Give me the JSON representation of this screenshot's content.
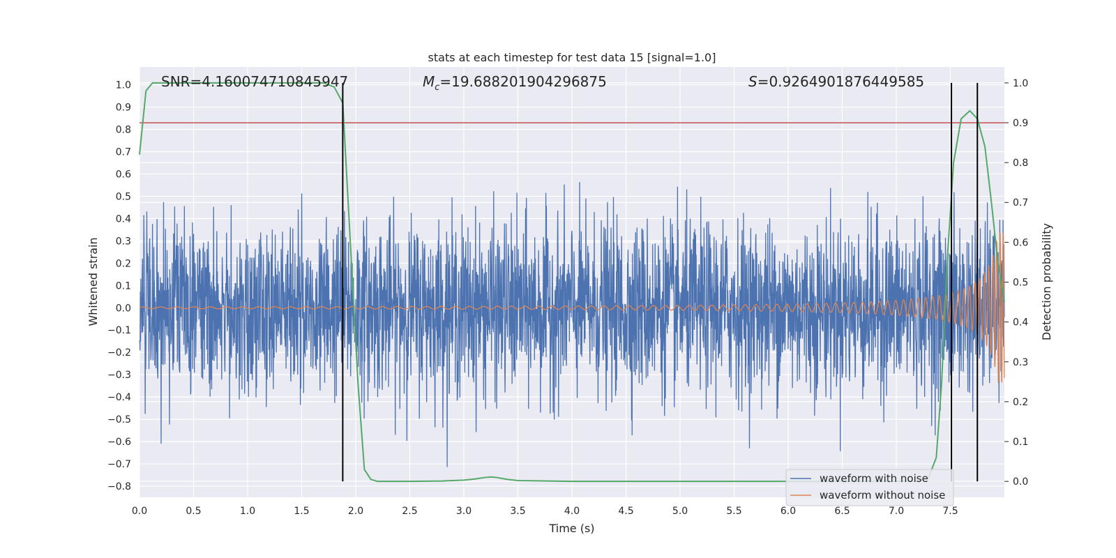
{
  "chart_data": {
    "type": "line",
    "title": "stats at each timestep for test data 15 [signal=1.0]",
    "xlabel": "Time (s)",
    "ylabel_left": "Whitened strain",
    "ylabel_right": "Detection probability",
    "xlim": [
      0.0,
      8.0
    ],
    "ylim_left": [
      -0.85,
      1.08
    ],
    "ylim_right": [
      -0.04,
      1.04
    ],
    "xticks": [
      "0.0",
      "0.5",
      "1.0",
      "1.5",
      "2.0",
      "2.5",
      "3.0",
      "3.5",
      "4.0",
      "4.5",
      "5.0",
      "5.5",
      "6.0",
      "6.5",
      "7.0",
      "7.5"
    ],
    "yticks_left": [
      "−0.8",
      "−0.7",
      "−0.6",
      "−0.5",
      "−0.4",
      "−0.3",
      "−0.2",
      "−0.1",
      "0.0",
      "0.1",
      "0.2",
      "0.3",
      "0.4",
      "0.5",
      "0.6",
      "0.7",
      "0.8",
      "0.9",
      "1.0"
    ],
    "yticks_right": [
      "0.0",
      "0.1",
      "0.2",
      "0.3",
      "0.4",
      "0.5",
      "0.6",
      "0.7",
      "0.8",
      "0.9",
      "1.0"
    ],
    "annotations": {
      "snr": "SNR=4.160074710845947",
      "mc_symbol": "M",
      "mc_sub": "c",
      "mc_value": "=19.688201904296875",
      "s_symbol": "S",
      "s_value": "=0.9264901876449585"
    },
    "threshold": 0.9,
    "vlines_x": [
      1.88,
      7.51,
      7.75
    ],
    "grid": true,
    "legend_placement": "lower-right",
    "series": [
      {
        "name": "waveform with noise",
        "color": "#4c72b0",
        "axis": "left",
        "description_type": "noise",
        "amplitude_std": 0.19,
        "x_range": [
          0.0,
          8.0
        ],
        "n_points": 3200
      },
      {
        "name": "waveform without noise",
        "color": "#dd8452",
        "axis": "left",
        "description_type": "chirp",
        "x_range": [
          0.0,
          8.0
        ]
      },
      {
        "name": "",
        "color": "#55a868",
        "axis": "right",
        "x": [
          0.0,
          0.06,
          0.12,
          0.2,
          0.4,
          0.8,
          1.2,
          1.6,
          1.7,
          1.8,
          1.88,
          1.95,
          2.02,
          2.08,
          2.14,
          2.2,
          2.5,
          2.8,
          3.0,
          3.1,
          3.2,
          3.25,
          3.3,
          3.4,
          3.5,
          4.0,
          5.0,
          6.0,
          7.0,
          7.2,
          7.3,
          7.37,
          7.42,
          7.47,
          7.53,
          7.6,
          7.68,
          7.75,
          7.82,
          7.88,
          7.94,
          8.0
        ],
        "y": [
          0.82,
          0.98,
          1.0,
          1.0,
          1.0,
          1.0,
          1.0,
          1.0,
          1.0,
          0.99,
          0.95,
          0.6,
          0.25,
          0.03,
          0.005,
          0.0,
          0.0,
          0.001,
          0.003,
          0.006,
          0.01,
          0.011,
          0.01,
          0.005,
          0.002,
          0.0,
          0.0,
          0.0,
          0.0,
          0.001,
          0.01,
          0.06,
          0.25,
          0.55,
          0.8,
          0.91,
          0.93,
          0.91,
          0.84,
          0.7,
          0.55,
          0.45
        ]
      }
    ]
  }
}
